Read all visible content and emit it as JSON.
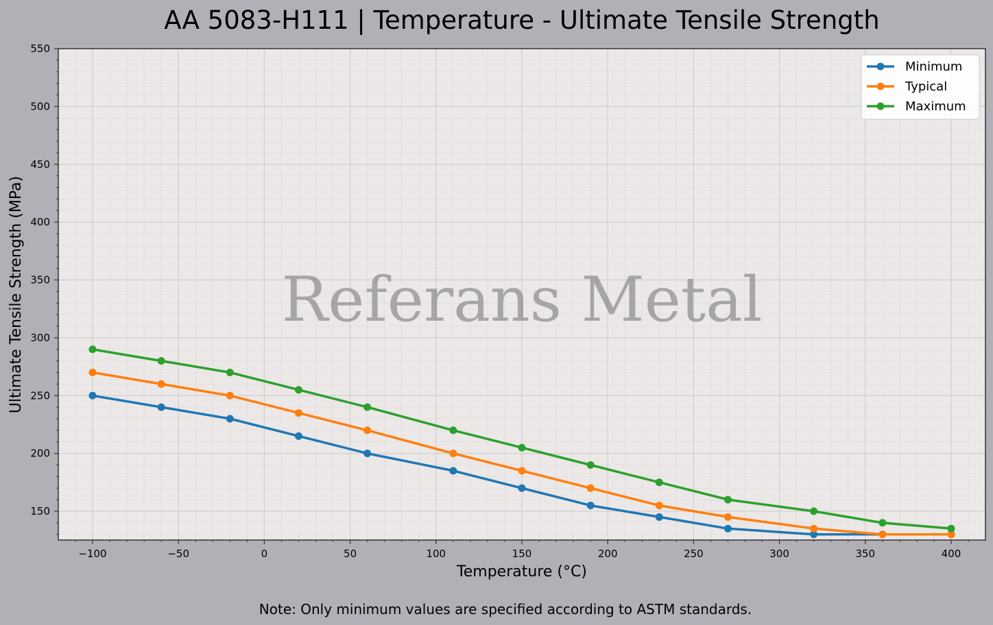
{
  "chart_data": {
    "type": "line",
    "title": "AA 5083-H111 | Temperature - Ultimate Tensile Strength",
    "xlabel": "Temperature (°C)",
    "ylabel": "Ultimate Tensile Strength (MPa)",
    "xlim": [
      -120,
      420
    ],
    "ylim": [
      125,
      550
    ],
    "xticks": [
      -100,
      -50,
      0,
      50,
      100,
      150,
      200,
      250,
      300,
      350,
      400
    ],
    "xtick_labels": [
      "−100",
      "−50",
      "0",
      "50",
      "100",
      "150",
      "200",
      "250",
      "300",
      "350",
      "400"
    ],
    "yticks": [
      150,
      200,
      250,
      300,
      350,
      400,
      450,
      500,
      550
    ],
    "ytick_labels": [
      "150",
      "200",
      "250",
      "300",
      "350",
      "400",
      "450",
      "500",
      "550"
    ],
    "grid": true,
    "legend_position": "top-right",
    "x": [
      -100,
      -60,
      -20,
      20,
      60,
      110,
      150,
      190,
      230,
      270,
      320,
      360,
      400
    ],
    "series": [
      {
        "name": "Minimum",
        "color": "#1f77b4",
        "values": [
          250,
          240,
          230,
          215,
          200,
          185,
          170,
          155,
          145,
          135,
          130,
          130,
          130
        ]
      },
      {
        "name": "Typical",
        "color": "#ff7f0e",
        "values": [
          270,
          260,
          250,
          235,
          220,
          200,
          185,
          170,
          155,
          145,
          135,
          130,
          130
        ]
      },
      {
        "name": "Maximum",
        "color": "#2ca02c",
        "values": [
          290,
          280,
          270,
          255,
          240,
          220,
          205,
          190,
          175,
          160,
          150,
          140,
          135
        ]
      }
    ],
    "watermark": "Referans Metal",
    "note": "Note: Only minimum values are specified according to ASTM standards."
  },
  "colors": {
    "figure_background": "#b1b0b6",
    "plot_background": "#ebe8e7"
  }
}
